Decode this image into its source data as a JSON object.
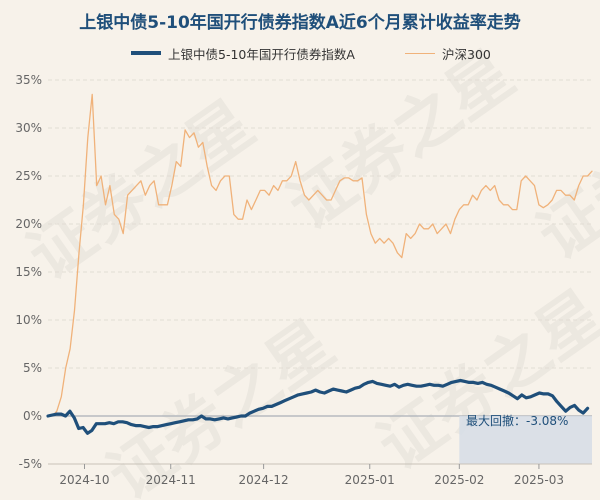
{
  "title": "上银中债5-10年国开行债券指数A近6个月累计收益率走势",
  "watermark": "证券之星",
  "colors": {
    "fund": "#1f4f7a",
    "index": "#f0b27a",
    "zero_line": "#aab0b8",
    "grid": "#e2ddd4",
    "shade": "#d6dde6"
  },
  "annotation": "最大回撤：-3.08%",
  "chart_data": {
    "type": "line",
    "title": "上银中债5-10年国开行债券指数A近6个月累计收益率走势",
    "ylim": [
      -5,
      35
    ],
    "yticks": [
      -5,
      0,
      5,
      10,
      15,
      20,
      25,
      30,
      35
    ],
    "ytick_labels": [
      "-5%",
      "0%",
      "5%",
      "10%",
      "15%",
      "20%",
      "25%",
      "30%",
      "35%"
    ],
    "xlim": [
      0,
      164
    ],
    "xticks": [
      11,
      37,
      65,
      97,
      124,
      148
    ],
    "xtick_labels": [
      "2024-10",
      "2024-11",
      "2024-12",
      "2025-01",
      "2025-02",
      "2025-03"
    ],
    "grid": true,
    "legend_position": "top",
    "series": [
      {
        "name": "上银中债5-10年国开行债券指数A",
        "values": [
          0,
          0.1,
          0.2,
          0.2,
          0,
          0.5,
          -0.2,
          -1.3,
          -1.2,
          -1.8,
          -1.5,
          -0.8,
          -0.8,
          -0.8,
          -0.7,
          -0.8,
          -0.6,
          -0.6,
          -0.7,
          -0.9,
          -1.0,
          -1.0,
          -1.1,
          -1.2,
          -1.1,
          -1.1,
          -1.0,
          -0.9,
          -0.8,
          -0.7,
          -0.6,
          -0.5,
          -0.4,
          -0.4,
          -0.3,
          0,
          -0.3,
          -0.3,
          -0.4,
          -0.3,
          -0.2,
          -0.3,
          -0.2,
          -0.1,
          0,
          0,
          0.3,
          0.5,
          0.7,
          0.8,
          1.0,
          1.0,
          1.2,
          1.4,
          1.6,
          1.8,
          2.0,
          2.2,
          2.3,
          2.4,
          2.5,
          2.7,
          2.5,
          2.4,
          2.6,
          2.8,
          2.7,
          2.6,
          2.5,
          2.7,
          2.9,
          3.0,
          3.3,
          3.5,
          3.6,
          3.4,
          3.3,
          3.2,
          3.1,
          3.3,
          3.0,
          3.2,
          3.3,
          3.2,
          3.1,
          3.1,
          3.2,
          3.3,
          3.2,
          3.2,
          3.1,
          3.3,
          3.5,
          3.6,
          3.7,
          3.6,
          3.5,
          3.5,
          3.4,
          3.5,
          3.3,
          3.2,
          3.0,
          2.8,
          2.6,
          2.4,
          2.1,
          1.8,
          2.2,
          1.9,
          2.0,
          2.2,
          2.4,
          2.3,
          2.3,
          2.1,
          1.5,
          1.0,
          0.5,
          0.9,
          1.1,
          0.6,
          0.3,
          0.8
        ],
        "x_step": 1.3225806
      },
      {
        "name": "沪深300",
        "values": [
          0,
          0,
          0.5,
          2,
          5,
          7,
          11,
          17,
          22,
          29,
          33.5,
          24,
          25,
          22,
          24,
          21,
          20.5,
          19,
          23,
          23.5,
          24,
          24.5,
          23,
          24,
          24.5,
          22,
          22,
          22,
          24,
          26.5,
          26,
          29.8,
          29,
          29.5,
          28,
          28.5,
          26,
          24,
          23.5,
          24.5,
          25,
          25,
          21,
          20.5,
          20.5,
          22.5,
          21.5,
          22.5,
          23.5,
          23.5,
          23,
          24,
          23.5,
          24.5,
          24.5,
          25,
          26.5,
          24.5,
          23,
          22.5,
          23,
          23.5,
          23,
          22.5,
          22.5,
          23.5,
          24.5,
          24.8,
          24.8,
          24.5,
          24.5,
          24.8,
          21,
          19,
          18,
          18.5,
          18,
          18.5,
          18,
          17,
          16.5,
          19,
          18.5,
          19,
          20,
          19.5,
          19.5,
          20,
          19,
          19.5,
          20,
          19,
          20.5,
          21.5,
          22,
          22,
          23,
          22.5,
          23.5,
          24,
          23.5,
          24,
          22.5,
          22,
          22,
          21.5,
          21.5,
          24.5,
          25,
          24.5,
          24,
          22,
          21.7,
          22,
          22.5,
          23.5,
          23.5,
          23,
          23,
          22.5,
          24,
          25,
          25,
          25.5
        ],
        "x_step": 1.3333333
      }
    ],
    "annotations": [
      {
        "text": "最大回撤：-3.08%",
        "x_range": [
          124,
          164
        ]
      }
    ]
  }
}
